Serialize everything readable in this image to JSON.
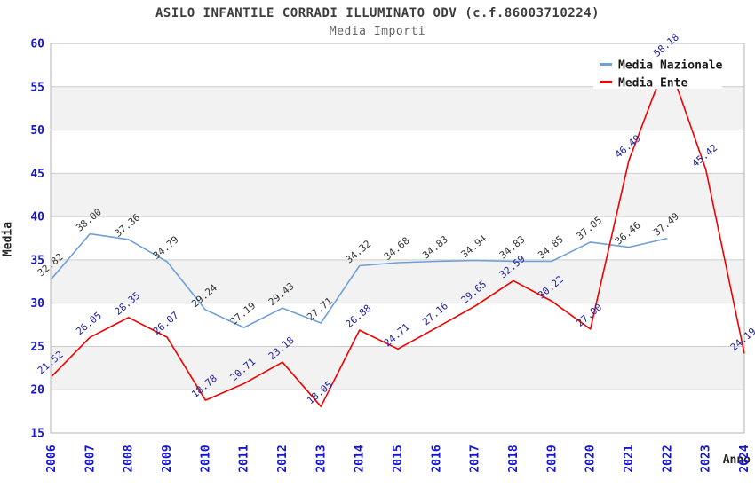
{
  "title": "ASILO INFANTILE CORRADI ILLUMINATO ODV (c.f.86003710224)",
  "subtitle": "Media Importi",
  "colors": {
    "band": "#f2f2f2",
    "grid": "#cccccc",
    "border": "#b5b5b5",
    "tick_label": "#1515d0",
    "national_line": "#6ea0d7",
    "ente_line": "#f20000",
    "national_value_label": "#333333",
    "ente_value_label": "#22229b",
    "legend_background": "#ffffff"
  },
  "chart_data": {
    "type": "line",
    "title": "ASILO INFANTILE CORRADI ILLUMINATO ODV (c.f.86003710224)",
    "subtitle": "Media Importi",
    "xlabel": "Anno",
    "ylabel": "Media",
    "ylim": [
      15,
      60
    ],
    "yticks": [
      15,
      20,
      25,
      30,
      35,
      40,
      45,
      50,
      55,
      60
    ],
    "grid": true,
    "alternating_bands": [
      [
        20,
        25
      ],
      [
        30,
        35
      ],
      [
        40,
        45
      ],
      [
        50,
        55
      ]
    ],
    "legend_position": "top-right",
    "x": [
      "2006",
      "2007",
      "2008",
      "2009",
      "2010",
      "2011",
      "2012",
      "2013",
      "2014",
      "2015",
      "2016",
      "2017",
      "2018",
      "2019",
      "2020",
      "2021",
      "2022",
      "2023",
      "2024"
    ],
    "series": [
      {
        "name": "Media Nazionale",
        "color": "#6ea0d7",
        "label_color": "#333333",
        "values": [
          32.82,
          38.0,
          37.36,
          34.79,
          29.24,
          27.19,
          29.43,
          27.71,
          34.32,
          34.68,
          34.83,
          34.94,
          34.83,
          34.85,
          37.05,
          36.46,
          37.49,
          null,
          null
        ]
      },
      {
        "name": "Media Ente",
        "color": "#f20000",
        "label_color": "#22229b",
        "values": [
          21.52,
          26.05,
          28.35,
          26.07,
          18.78,
          20.71,
          23.18,
          18.05,
          26.88,
          24.71,
          27.16,
          29.65,
          32.59,
          30.22,
          27.0,
          46.49,
          58.18,
          45.42,
          24.19
        ]
      }
    ]
  }
}
